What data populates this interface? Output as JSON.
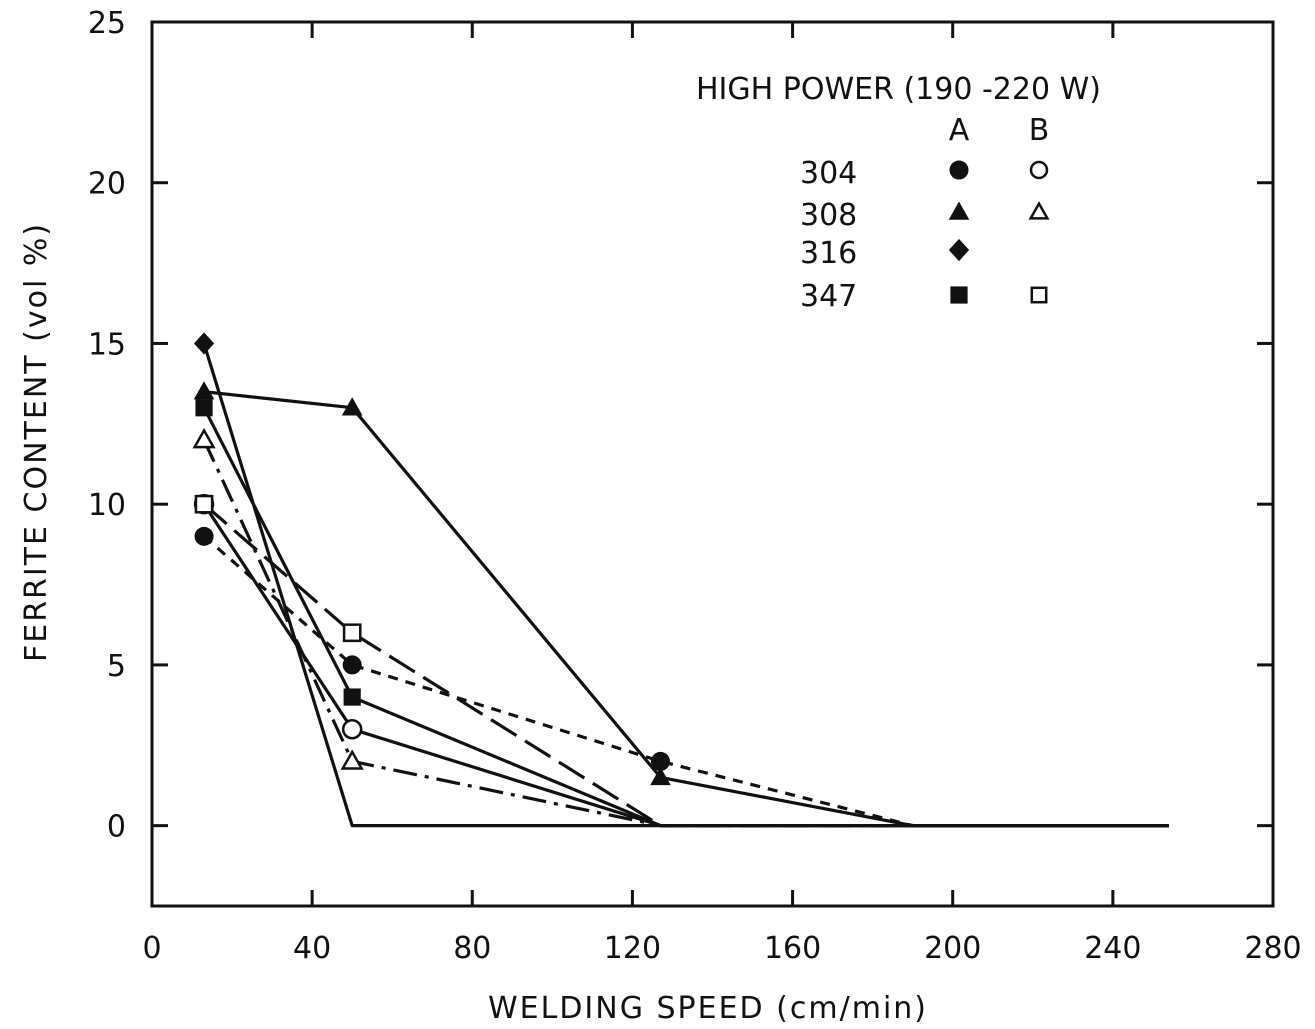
{
  "chart_data": {
    "type": "line",
    "title": "",
    "xlabel": "WELDING SPEED (cm/min)",
    "ylabel": "FERRITE CONTENT (vol %)",
    "xlim": [
      0,
      280
    ],
    "ylim": [
      -2.5,
      25
    ],
    "xticks": [
      0,
      40,
      80,
      120,
      160,
      200,
      240,
      280
    ],
    "yticks": [
      0,
      5,
      10,
      15,
      20,
      25
    ],
    "grid": false,
    "legend": {
      "title": "HIGH POWER (190 -220 W)",
      "column_headers": [
        "A",
        "B"
      ],
      "placement": "top-right",
      "rows": [
        {
          "label": "304",
          "A": "filled-circle",
          "B": "open-circle"
        },
        {
          "label": "308",
          "A": "filled-triangle",
          "B": "open-triangle"
        },
        {
          "label": "316",
          "A": "filled-diamond",
          "B": ""
        },
        {
          "label": "347",
          "A": "filled-square",
          "B": "open-square"
        }
      ]
    },
    "series": [
      {
        "name": "304 A",
        "marker": "filled-circle",
        "line": "dotted-dash",
        "x": [
          13,
          50,
          127,
          190,
          254
        ],
        "y": [
          9,
          5,
          2,
          0,
          0
        ]
      },
      {
        "name": "304 B",
        "marker": "open-circle",
        "line": "solid",
        "x": [
          13,
          50,
          127,
          190,
          254
        ],
        "y": [
          10,
          3,
          0,
          0,
          0
        ]
      },
      {
        "name": "308 A",
        "marker": "filled-triangle",
        "line": "solid",
        "x": [
          13,
          50,
          127,
          190,
          254
        ],
        "y": [
          13.5,
          13,
          1.5,
          0,
          0
        ]
      },
      {
        "name": "308 B",
        "marker": "open-triangle",
        "line": "dash-dot",
        "x": [
          13,
          50,
          127,
          190,
          254
        ],
        "y": [
          12,
          2,
          0,
          0,
          0
        ]
      },
      {
        "name": "316 A",
        "marker": "filled-diamond",
        "line": "solid",
        "x": [
          13,
          50,
          127,
          190,
          254
        ],
        "y": [
          15,
          0,
          0,
          0,
          0
        ]
      },
      {
        "name": "347 A",
        "marker": "filled-square",
        "line": "solid",
        "x": [
          13,
          50,
          127,
          190,
          254
        ],
        "y": [
          13,
          4,
          0,
          0,
          0
        ]
      },
      {
        "name": "347 B",
        "marker": "open-square",
        "line": "long-dash",
        "x": [
          13,
          50,
          127,
          190,
          254
        ],
        "y": [
          10,
          6,
          0,
          0,
          0
        ]
      }
    ]
  }
}
